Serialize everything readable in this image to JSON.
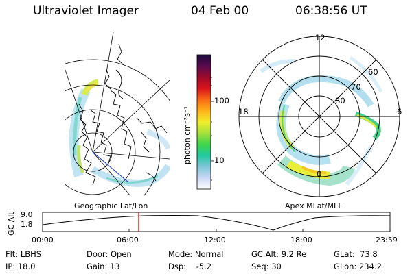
{
  "header": {
    "title": "Ultraviolet Imager",
    "date": "04 Feb 00",
    "time": "06:38:56 UT"
  },
  "colorbar": {
    "unit_label": "photon cm⁻²s⁻¹",
    "ticks": [
      "100",
      "10"
    ]
  },
  "geo_panel": {
    "caption": "Geographic Lat/Lon"
  },
  "polar_panel": {
    "caption": "Apex MLat/MLT",
    "mlt_labels": [
      "12",
      "18",
      "6",
      "0"
    ],
    "lat_labels": [
      "60",
      "70",
      "80"
    ]
  },
  "timeline": {
    "axis_label": "GC Alt",
    "y_ticks": [
      "9.0",
      "1.8"
    ],
    "x_ticks": [
      "00:00",
      "06:00",
      "12:00",
      "18:00",
      "23:59"
    ]
  },
  "info": {
    "row1": {
      "flt": "Flt: LBHS",
      "door": "Door: Open",
      "mode": "Mode: Normal",
      "gc_alt": "GC Alt: 9.2 Re",
      "glat": "GLat:  73.8"
    },
    "row2": {
      "ip": "IP: 18.0",
      "gain": "Gain: 13",
      "dsp": "Dsp:    -5.2",
      "seq": "Seq: 30",
      "glon": "GLon: 234.2"
    }
  },
  "colors": {
    "colorbar_stops": [
      "#ffffff",
      "#c9d8f4",
      "#7fc6d8",
      "#22c9a0",
      "#3fd64a",
      "#a6e03b",
      "#f1ee2c",
      "#ffb21a",
      "#f76a14",
      "#d9121b",
      "#9c0a2b",
      "#5a0b4f",
      "#1b0b3a"
    ],
    "time_marker": "#cc0000"
  }
}
